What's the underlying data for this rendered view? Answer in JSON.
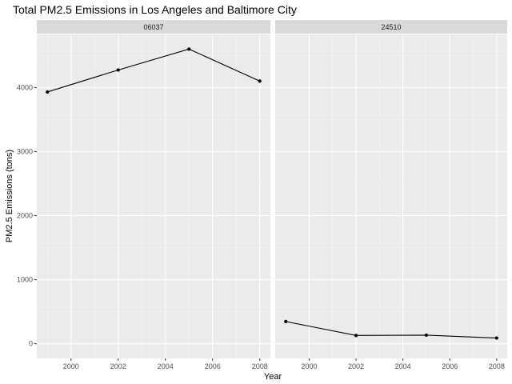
{
  "chart_data": {
    "type": "line",
    "title": "Total PM2.5 Emissions in Los Angeles and Baltimore City",
    "xlabel": "Year",
    "ylabel": "PM2.5 Emissions (tons)",
    "x_ticks": [
      2000,
      2002,
      2004,
      2006,
      2008
    ],
    "y_ticks": [
      0,
      1000,
      2000,
      3000,
      4000
    ],
    "xlim": [
      1998.55,
      2008.45
    ],
    "ylim": [
      -230,
      4830
    ],
    "grid": true,
    "facet_by": "fips",
    "panels": [
      {
        "label": "06037",
        "x": [
          1999,
          2002,
          2005,
          2008
        ],
        "values": [
          3931,
          4274,
          4601,
          4101
        ]
      },
      {
        "label": "24510",
        "x": [
          1999,
          2002,
          2005,
          2008
        ],
        "values": [
          346,
          128,
          133,
          88
        ]
      }
    ]
  }
}
